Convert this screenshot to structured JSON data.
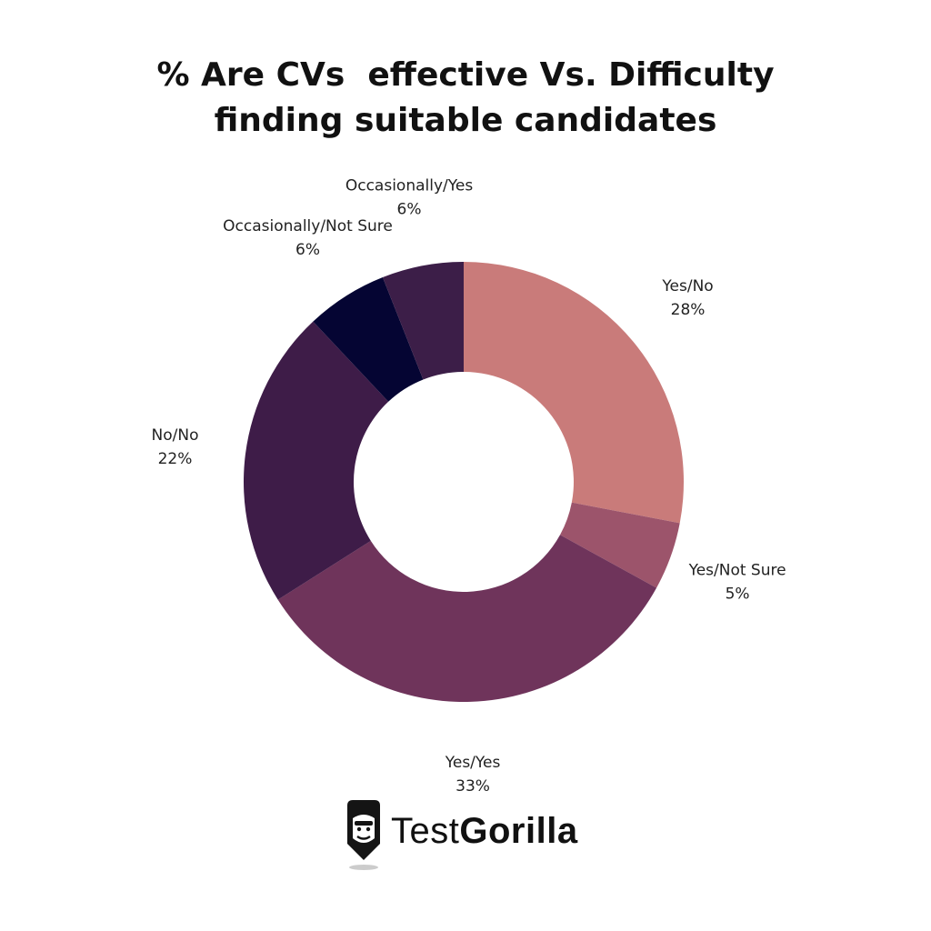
{
  "title_lines": [
    "% Are CVs  effective Vs. Difficulty",
    "finding suitable candidates"
  ],
  "chart_data": {
    "type": "pie",
    "title": "% Are CVs  effective Vs. Difficulty finding suitable candidates",
    "donut": true,
    "categories": [
      "Yes/No",
      "Yes/Not Sure",
      "Yes/Yes",
      "No/No",
      "Occasionally/Not Sure",
      "Occasionally/Yes"
    ],
    "values": [
      28,
      5,
      33,
      22,
      6,
      6
    ],
    "value_labels": [
      "28%",
      "5%",
      "33%",
      "22%",
      "6%",
      "6%"
    ],
    "colors": [
      "#c97b7a",
      "#9c546b",
      "#6f345b",
      "#3e1c48",
      "#050533",
      "#3c1e48"
    ],
    "start": "12 o'clock",
    "direction": "clockwise"
  },
  "brand": {
    "logo_icon": "gorilla-icon",
    "name_light": "Test",
    "name_bold": "Gorilla"
  }
}
